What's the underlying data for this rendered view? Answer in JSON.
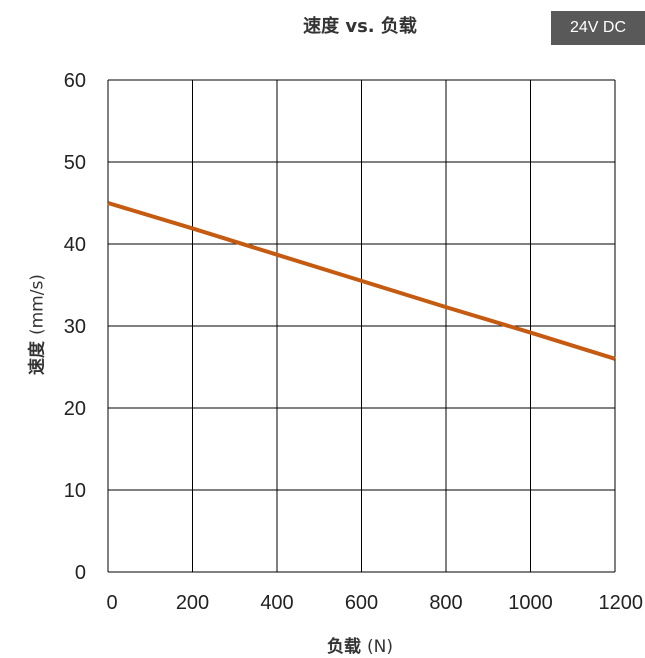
{
  "chart_data": {
    "type": "line",
    "title": "速度 vs. 负载",
    "badge": "24V DC",
    "xlabel": "负载",
    "xlabel_unit": "(N)",
    "ylabel": "速度",
    "ylabel_unit": "(mm/s)",
    "xlim": [
      0,
      1200
    ],
    "ylim": [
      0,
      60
    ],
    "xticks": [
      0,
      200,
      400,
      600,
      800,
      1000,
      1200
    ],
    "yticks": [
      0,
      10,
      20,
      30,
      40,
      50,
      60
    ],
    "grid": true,
    "series": [
      {
        "color": "#C55A11",
        "x": [
          0,
          200,
          400,
          600,
          800,
          1000,
          1200
        ],
        "y": [
          45,
          41.9,
          38.7,
          35.5,
          32.3,
          29.2,
          26
        ]
      }
    ]
  },
  "colors": {
    "line": "#C55A11",
    "grid": "#000000",
    "badge_bg": "#595959"
  }
}
